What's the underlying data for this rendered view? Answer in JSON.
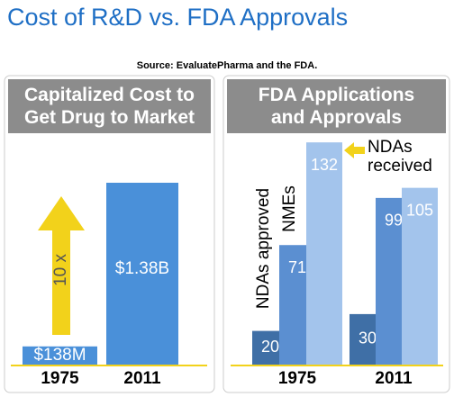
{
  "title": "Cost of R&D vs. FDA Approvals",
  "source": "Source: EvaluatePharma and the FDA.",
  "chart_data": [
    {
      "type": "bar",
      "title": "Capitalized Cost to Get Drug to Market",
      "categories": [
        "1975",
        "2011"
      ],
      "values": [
        138000000,
        1380000000
      ],
      "value_labels": [
        "$138M",
        "$1.38B"
      ],
      "color": "#4a90d9",
      "annotation": "10 x"
    },
    {
      "type": "grouped_bar",
      "title": "FDA Applications and Approvals",
      "categories": [
        "1975",
        "2011"
      ],
      "series": [
        {
          "name": "NDAs approved",
          "color": "#3f6fa6",
          "values": [
            20,
            30
          ]
        },
        {
          "name": "NMEs",
          "color": "#5b8fd1",
          "values": [
            71,
            99
          ]
        },
        {
          "name": "NDAs received",
          "color": "#a3c4ec",
          "values": [
            132,
            105
          ]
        }
      ]
    }
  ]
}
